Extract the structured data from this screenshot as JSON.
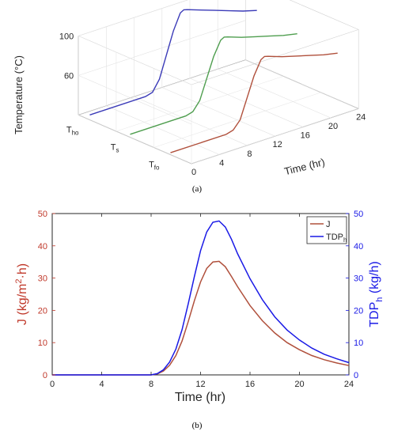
{
  "captions": {
    "a": "(a)",
    "b": "(b)"
  },
  "chart_data": [
    {
      "type": "line",
      "view": "3d",
      "zlabel": "Temperature (°C)",
      "xlabel": "Time (hr)",
      "zticks": [
        "60",
        "100"
      ],
      "xticks": [
        "0",
        "4",
        "8",
        "12",
        "16",
        "20",
        "24"
      ],
      "categories": [
        "T_ho",
        "T_s",
        "T_fo"
      ],
      "category_labels": [
        {
          "main": "T",
          "sub": "ho"
        },
        {
          "main": "T",
          "sub": "s"
        },
        {
          "main": "T",
          "sub": "fo"
        }
      ],
      "zlim": [
        20,
        100
      ],
      "xlim": [
        0,
        24
      ],
      "grid": true,
      "series": [
        {
          "color": "#3b3bb8",
          "x": [
            0,
            4,
            8,
            9,
            10,
            11,
            12,
            13,
            13.5,
            14,
            16,
            18,
            20,
            22,
            24
          ],
          "values": [
            25,
            25,
            25,
            27,
            38,
            60,
            82,
            98,
            100,
            99,
            94,
            89,
            84,
            79,
            75
          ]
        },
        {
          "color": "#4f9e4f",
          "x": [
            0,
            4,
            8,
            9,
            10,
            11,
            12,
            13,
            13.5,
            14,
            16,
            18,
            20,
            22,
            24
          ],
          "values": [
            23,
            23,
            23,
            25,
            34,
            54,
            74,
            88,
            90,
            89,
            84,
            80,
            76,
            72,
            69
          ]
        },
        {
          "color": "#b0503c",
          "x": [
            0,
            4,
            8,
            9,
            10,
            11,
            12,
            13,
            13.5,
            14,
            16,
            18,
            20,
            22,
            24
          ],
          "values": [
            22,
            22,
            22,
            24,
            32,
            52,
            72,
            86,
            88,
            87,
            82,
            78,
            74,
            70,
            67
          ]
        }
      ]
    },
    {
      "type": "line",
      "xlabel": "Time (hr)",
      "ylabel_left": {
        "main": "J (kg/m",
        "sup": "2",
        "rest": "·h)"
      },
      "ylabel_right": {
        "main": "TDP",
        "sub": "h",
        "rest": " (kg/h)"
      },
      "xlim": [
        0,
        24
      ],
      "ylim_left": [
        0,
        50
      ],
      "ylim_right": [
        0,
        50
      ],
      "xticks": [
        "0",
        "4",
        "8",
        "12",
        "16",
        "20",
        "24"
      ],
      "yticks_left": [
        "0",
        "10",
        "20",
        "30",
        "40",
        "50"
      ],
      "yticks_right": [
        "0",
        "10",
        "20",
        "30",
        "40",
        "50"
      ],
      "legend_position": "top-right",
      "grid": false,
      "series": [
        {
          "name": "J",
          "legend": {
            "main": "J",
            "sub": ""
          },
          "color": "#b0503c",
          "axis": "left",
          "x": [
            0,
            4,
            8,
            8.5,
            9,
            9.5,
            10,
            10.5,
            11,
            11.5,
            12,
            12.5,
            13,
            13.5,
            14,
            14.5,
            15,
            16,
            17,
            18,
            19,
            20,
            21,
            22,
            23,
            24
          ],
          "values": [
            0,
            0,
            0,
            0.3,
            1.2,
            3.0,
            6.0,
            10.5,
            16.5,
            23.0,
            28.8,
            33.0,
            35.0,
            35.2,
            33.5,
            30.5,
            27.3,
            21.5,
            16.8,
            13.0,
            10.0,
            7.8,
            6.0,
            4.7,
            3.7,
            2.9
          ]
        },
        {
          "name": "TDP_h",
          "legend": {
            "main": "TDP",
            "sub": "h"
          },
          "color": "#1a1ae6",
          "axis": "right",
          "x": [
            0,
            4,
            8,
            8.5,
            9,
            9.5,
            10,
            10.5,
            11,
            11.5,
            12,
            12.5,
            13,
            13.5,
            14,
            14.5,
            15,
            16,
            17,
            18,
            19,
            20,
            21,
            22,
            23,
            24
          ],
          "values": [
            0,
            0,
            0,
            0.4,
            1.6,
            4.0,
            8.0,
            14.0,
            22.0,
            30.5,
            38.5,
            44.3,
            47.3,
            47.7,
            45.8,
            42.0,
            37.5,
            29.8,
            23.3,
            18.0,
            13.9,
            10.8,
            8.3,
            6.4,
            5.0,
            3.8
          ]
        }
      ]
    }
  ]
}
